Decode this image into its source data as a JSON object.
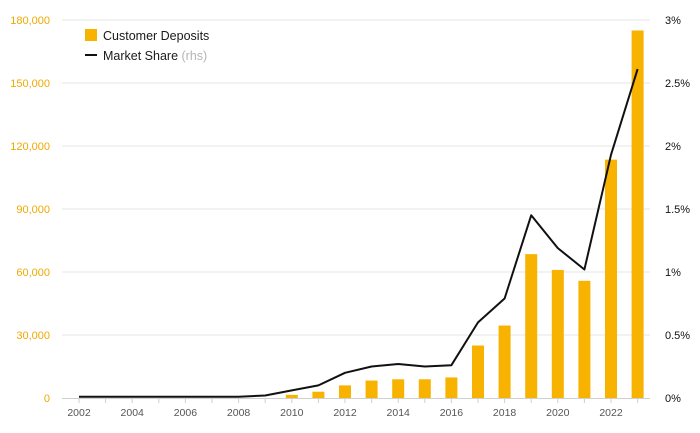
{
  "colors": {
    "bar": "#f8b200",
    "line": "#111111",
    "left_axis_text": "#f0a800",
    "grid": "#e6e6e6",
    "muted": "#b5b5b5"
  },
  "legend": {
    "bar_label": "Customer Deposits",
    "line_label": "Market Share",
    "line_suffix": "(rhs)"
  },
  "chart_data": {
    "type": "bar",
    "x": [
      2002,
      2003,
      2004,
      2005,
      2006,
      2007,
      2008,
      2009,
      2010,
      2011,
      2012,
      2013,
      2014,
      2015,
      2016,
      2017,
      2018,
      2019,
      2020,
      2021,
      2022,
      2023
    ],
    "x_tick_labels": [
      "2002",
      "2004",
      "2006",
      "2008",
      "2010",
      "2012",
      "2014",
      "2016",
      "2018",
      "2020",
      "2022"
    ],
    "series": [
      {
        "name": "Customer Deposits",
        "type": "bar",
        "axis": "left",
        "values": [
          0,
          0,
          0,
          0,
          0,
          0,
          0,
          0,
          1500,
          3000,
          6000,
          8300,
          8900,
          8900,
          9800,
          25000,
          34500,
          68500,
          61000,
          55800,
          113500,
          175000
        ]
      },
      {
        "name": "Market Share (rhs)",
        "type": "line",
        "axis": "right",
        "values": [
          0.0001,
          0.0001,
          0.0001,
          0.0001,
          0.0001,
          0.0001,
          0.0001,
          0.0002,
          0.0006,
          0.001,
          0.002,
          0.0025,
          0.0027,
          0.0025,
          0.0026,
          0.006,
          0.0079,
          0.0145,
          0.0119,
          0.0102,
          0.0193,
          0.0261
        ]
      }
    ],
    "left_axis": {
      "ylim": [
        0,
        180000
      ],
      "ticks": [
        0,
        30000,
        60000,
        90000,
        120000,
        150000,
        180000
      ],
      "tick_labels": [
        "0",
        "30,000",
        "60,000",
        "90,000",
        "120,000",
        "150,000",
        "180,000"
      ]
    },
    "right_axis": {
      "ylim": [
        0,
        0.03
      ],
      "ticks": [
        0,
        0.005,
        0.01,
        0.015,
        0.02,
        0.025,
        0.03
      ],
      "tick_labels": [
        "0%",
        "0.5%",
        "1%",
        "1.5%",
        "2%",
        "2.5%",
        "3%"
      ]
    },
    "grid": true,
    "legend_position": "top-left"
  }
}
